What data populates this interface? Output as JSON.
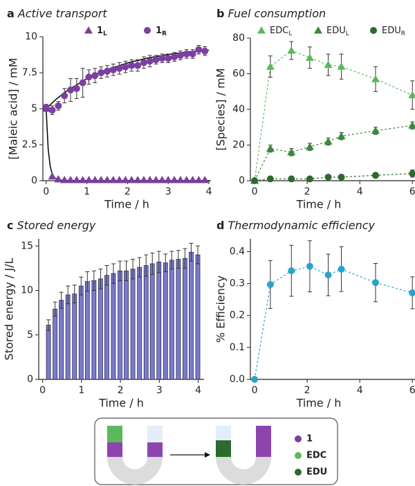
{
  "chart_data": [
    {
      "type": "line",
      "panel": "a",
      "title": "Active transport",
      "xlabel": "Time / h",
      "ylabel": "[Maleic acid] / mM",
      "xlim": [
        -0.08,
        4.05
      ],
      "ylim": [
        0,
        10
      ],
      "xticks": [
        0,
        1,
        2,
        3,
        4
      ],
      "yticks": [
        0,
        2.5,
        5,
        7.5,
        10
      ],
      "x": [
        0,
        0.15,
        0.3,
        0.45,
        0.6,
        0.75,
        0.9,
        1.05,
        1.2,
        1.35,
        1.5,
        1.65,
        1.8,
        1.95,
        2.1,
        2.25,
        2.4,
        2.55,
        2.7,
        2.85,
        3.0,
        3.15,
        3.3,
        3.45,
        3.6,
        3.75,
        3.9
      ],
      "series": [
        {
          "name": "1",
          "name_sub": "L",
          "color": "#7b3fa0",
          "marker": "triangle",
          "linestyle": "none",
          "values": [
            5.0,
            0.3,
            0.1,
            0.05,
            0.05,
            0.05,
            0.05,
            0.05,
            0.05,
            0.05,
            0.05,
            0.05,
            0.05,
            0.05,
            0.05,
            0.05,
            0.05,
            0.05,
            0.05,
            0.05,
            0.05,
            0.05,
            0.05,
            0.05,
            0.05,
            0.05,
            0.05
          ]
        },
        {
          "name": "1",
          "name_sub": "R",
          "color": "#7b3fa0",
          "marker": "circle",
          "linestyle": "none",
          "values": [
            5.1,
            4.9,
            5.2,
            5.9,
            6.3,
            6.4,
            6.8,
            7.2,
            7.3,
            7.5,
            7.6,
            7.7,
            7.8,
            7.9,
            8.0,
            8.0,
            8.2,
            8.3,
            8.4,
            8.5,
            8.5,
            8.6,
            8.7,
            8.8,
            8.8,
            9.1,
            9.0
          ],
          "errors": [
            0.2,
            0.3,
            0.3,
            0.5,
            0.8,
            0.7,
            1.0,
            0.5,
            0.5,
            0.4,
            0.4,
            0.4,
            0.4,
            0.4,
            0.4,
            0.4,
            0.4,
            0.4,
            0.3,
            0.3,
            0.3,
            0.3,
            0.3,
            0.3,
            0.3,
            0.3,
            0.3
          ]
        }
      ],
      "fits": [
        {
          "color": "#000000",
          "x": [
            0,
            0.05,
            0.1,
            0.15,
            0.2,
            0.3,
            0.5,
            1,
            4
          ],
          "values": [
            5,
            2.2,
            1.0,
            0.45,
            0.2,
            0.05,
            0.01,
            0,
            0
          ]
        },
        {
          "color": "#000000",
          "x": [
            0,
            0.25,
            0.5,
            1,
            1.5,
            2,
            2.5,
            3,
            3.5,
            4
          ],
          "values": [
            5,
            5.67,
            6.22,
            7.09,
            7.72,
            8.18,
            8.52,
            8.77,
            8.94,
            9.07
          ]
        }
      ]
    },
    {
      "type": "line",
      "panel": "b",
      "title": "Fuel consumption",
      "xlabel": "Time / h",
      "ylabel": "[Species] / mM",
      "xlim": [
        -0.16,
        6.1
      ],
      "ylim": [
        0,
        80
      ],
      "xticks": [
        0,
        2,
        4,
        6
      ],
      "yticks": [
        0,
        20,
        40,
        60,
        80
      ],
      "x": [
        0,
        0.6,
        1.4,
        2.1,
        2.8,
        3.3,
        4.6,
        6.0
      ],
      "series": [
        {
          "name": "EDC",
          "name_sub": "L",
          "color": "#5cb85c",
          "marker": "triangle",
          "linestyle": "dashed",
          "values": [
            0,
            64,
            73,
            69,
            65,
            64,
            57,
            48
          ],
          "errors": [
            null,
            6,
            5,
            6,
            6,
            7,
            7,
            8
          ]
        },
        {
          "name": "EDU",
          "name_sub": "L",
          "color": "#3a8a3a",
          "marker": "triangle",
          "linestyle": "dashed",
          "values": [
            0,
            18,
            16,
            19,
            22,
            25,
            28,
            31
          ],
          "errors": [
            null,
            2,
            2,
            2,
            2,
            2,
            2,
            2
          ]
        },
        {
          "name": "EDU",
          "name_sub": "R",
          "color": "#2d6a2d",
          "marker": "circle",
          "linestyle": "dashed",
          "values": [
            0,
            1,
            1,
            1,
            2,
            2,
            3,
            4
          ],
          "errors": [
            null,
            1,
            1,
            1,
            1,
            1,
            1.5,
            2
          ]
        }
      ]
    },
    {
      "type": "bar",
      "panel": "c",
      "title": "Stored energy",
      "xlabel": "Time / h",
      "ylabel": "Stored energy / J/L",
      "xlim": [
        -0.1,
        4.15
      ],
      "ylim": [
        0,
        15.8
      ],
      "xticks": [
        0,
        1,
        2,
        3,
        4
      ],
      "yticks": [
        0,
        5,
        10,
        15
      ],
      "x": [
        0.15,
        0.32,
        0.48,
        0.65,
        0.82,
        0.99,
        1.15,
        1.32,
        1.49,
        1.65,
        1.82,
        1.99,
        2.15,
        2.32,
        2.49,
        2.66,
        2.82,
        2.99,
        3.16,
        3.32,
        3.49,
        3.66,
        3.82,
        3.99
      ],
      "series": [
        {
          "color": "#7b7bcc",
          "values": [
            6.1,
            7.9,
            8.9,
            9.5,
            9.6,
            10.5,
            11.0,
            11.1,
            11.3,
            11.7,
            11.9,
            12.2,
            12.2,
            12.4,
            12.6,
            12.8,
            13.0,
            13.2,
            13.1,
            13.4,
            13.5,
            13.6,
            14.3,
            14.0
          ],
          "errors": [
            0.6,
            0.8,
            0.9,
            1.0,
            1.0,
            1.0,
            1.1,
            1.1,
            1.1,
            1.1,
            1.1,
            1.1,
            1.1,
            1.1,
            1.1,
            1.2,
            1.2,
            1.2,
            1.0,
            1.0,
            1.0,
            1.1,
            1.0,
            1.0
          ]
        }
      ]
    },
    {
      "type": "line",
      "panel": "d",
      "title": "Thermodynamic efficiency",
      "xlabel": "Time / h",
      "ylabel": "% Efficiency",
      "xlim": [
        -0.16,
        6.1
      ],
      "ylim": [
        0,
        0.44
      ],
      "xticks": [
        0,
        2,
        4,
        6
      ],
      "yticks": [
        {
          "value": 0,
          "label": "0.0"
        },
        0.1,
        0.2,
        0.3,
        0.4
      ],
      "x": [
        0,
        0.6,
        1.4,
        2.1,
        2.8,
        3.3,
        4.6,
        6.0
      ],
      "series": [
        {
          "color": "#2aa3c9",
          "marker": "circle",
          "linestyle": "dashed",
          "values": [
            0,
            0.297,
            0.34,
            0.354,
            0.327,
            0.345,
            0.303,
            0.271
          ],
          "errors": [
            null,
            0.075,
            0.08,
            0.08,
            0.065,
            0.07,
            0.06,
            0.05
          ]
        }
      ]
    }
  ],
  "diagram": {
    "legend": [
      {
        "label": "1"
      },
      {
        "label": "EDC"
      },
      {
        "label": "EDU"
      }
    ]
  }
}
